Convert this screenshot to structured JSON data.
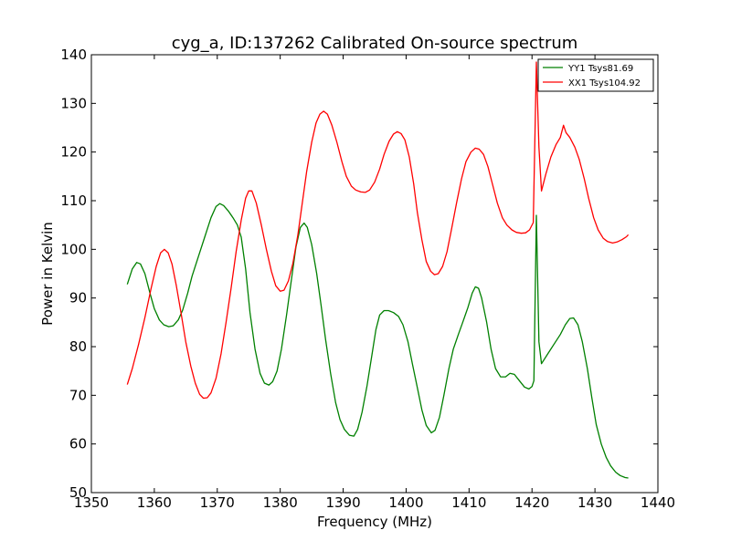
{
  "chart_data": {
    "type": "line",
    "title": "cyg_a, ID:137262 Calibrated On-source spectrum",
    "xlabel": "Frequency (MHz)",
    "ylabel": "Power in Kelvin",
    "xlim": [
      1350,
      1440
    ],
    "ylim": [
      50,
      140
    ],
    "xticks": [
      1350,
      1360,
      1370,
      1380,
      1390,
      1400,
      1410,
      1420,
      1430,
      1440
    ],
    "yticks": [
      50,
      60,
      70,
      80,
      90,
      100,
      110,
      120,
      130,
      140
    ],
    "grid": false,
    "legend_position": "top-right",
    "series": [
      {
        "name": "YY1 Tsys81.69",
        "color": "#008000",
        "points": [
          [
            1355.7,
            92.8
          ],
          [
            1356.5,
            96.0
          ],
          [
            1357.2,
            97.3
          ],
          [
            1357.8,
            97.0
          ],
          [
            1358.5,
            95.0
          ],
          [
            1359.3,
            91.0
          ],
          [
            1360.0,
            87.8
          ],
          [
            1360.8,
            85.5
          ],
          [
            1361.5,
            84.5
          ],
          [
            1362.3,
            84.1
          ],
          [
            1363.0,
            84.3
          ],
          [
            1363.8,
            85.5
          ],
          [
            1364.5,
            87.5
          ],
          [
            1365.3,
            91.0
          ],
          [
            1366.0,
            94.5
          ],
          [
            1367.0,
            98.5
          ],
          [
            1368.0,
            102.5
          ],
          [
            1369.0,
            106.5
          ],
          [
            1369.8,
            108.8
          ],
          [
            1370.4,
            109.4
          ],
          [
            1371.0,
            109.0
          ],
          [
            1371.8,
            107.8
          ],
          [
            1372.5,
            106.5
          ],
          [
            1373.2,
            105.0
          ],
          [
            1373.8,
            102.5
          ],
          [
            1374.5,
            96.0
          ],
          [
            1375.2,
            87.0
          ],
          [
            1376.0,
            79.5
          ],
          [
            1376.8,
            74.5
          ],
          [
            1377.5,
            72.5
          ],
          [
            1378.2,
            72.1
          ],
          [
            1378.8,
            72.8
          ],
          [
            1379.5,
            75.0
          ],
          [
            1380.2,
            79.5
          ],
          [
            1381.0,
            86.5
          ],
          [
            1381.8,
            94.0
          ],
          [
            1382.5,
            100.5
          ],
          [
            1383.2,
            104.5
          ],
          [
            1383.8,
            105.4
          ],
          [
            1384.3,
            104.5
          ],
          [
            1385.0,
            101.0
          ],
          [
            1385.8,
            95.0
          ],
          [
            1386.5,
            88.5
          ],
          [
            1387.2,
            81.5
          ],
          [
            1388.0,
            74.5
          ],
          [
            1388.8,
            68.5
          ],
          [
            1389.5,
            65.0
          ],
          [
            1390.2,
            63.0
          ],
          [
            1391.0,
            61.8
          ],
          [
            1391.7,
            61.6
          ],
          [
            1392.3,
            63.0
          ],
          [
            1393.0,
            66.5
          ],
          [
            1393.8,
            72.0
          ],
          [
            1394.6,
            78.5
          ],
          [
            1395.2,
            83.5
          ],
          [
            1395.8,
            86.5
          ],
          [
            1396.5,
            87.4
          ],
          [
            1397.2,
            87.4
          ],
          [
            1398.0,
            87.0
          ],
          [
            1398.8,
            86.2
          ],
          [
            1399.5,
            84.5
          ],
          [
            1400.3,
            81.0
          ],
          [
            1401.0,
            76.5
          ],
          [
            1401.8,
            71.5
          ],
          [
            1402.5,
            67.0
          ],
          [
            1403.2,
            63.8
          ],
          [
            1404.0,
            62.3
          ],
          [
            1404.6,
            62.8
          ],
          [
            1405.3,
            65.5
          ],
          [
            1406.0,
            70.0
          ],
          [
            1406.8,
            75.5
          ],
          [
            1407.5,
            79.5
          ],
          [
            1408.3,
            82.5
          ],
          [
            1409.0,
            85.0
          ],
          [
            1409.8,
            88.0
          ],
          [
            1410.5,
            91.0
          ],
          [
            1411.0,
            92.3
          ],
          [
            1411.5,
            92.0
          ],
          [
            1412.0,
            90.0
          ],
          [
            1412.8,
            85.0
          ],
          [
            1413.5,
            79.5
          ],
          [
            1414.2,
            75.5
          ],
          [
            1415.0,
            73.8
          ],
          [
            1415.8,
            73.8
          ],
          [
            1416.5,
            74.5
          ],
          [
            1417.2,
            74.3
          ],
          [
            1418.0,
            73.0
          ],
          [
            1418.8,
            71.7
          ],
          [
            1419.5,
            71.3
          ],
          [
            1420.0,
            71.8
          ],
          [
            1420.3,
            73.0
          ],
          [
            1420.7,
            107.0
          ],
          [
            1421.1,
            81.0
          ],
          [
            1421.5,
            76.5
          ],
          [
            1422.5,
            78.5
          ],
          [
            1423.5,
            80.5
          ],
          [
            1424.5,
            82.5
          ],
          [
            1425.3,
            84.5
          ],
          [
            1426.0,
            85.8
          ],
          [
            1426.6,
            85.9
          ],
          [
            1427.3,
            84.5
          ],
          [
            1428.0,
            81.0
          ],
          [
            1428.8,
            75.5
          ],
          [
            1429.5,
            69.5
          ],
          [
            1430.2,
            64.0
          ],
          [
            1431.0,
            60.0
          ],
          [
            1431.8,
            57.2
          ],
          [
            1432.5,
            55.5
          ],
          [
            1433.3,
            54.2
          ],
          [
            1434.0,
            53.5
          ],
          [
            1434.8,
            53.1
          ],
          [
            1435.3,
            53.0
          ]
        ]
      },
      {
        "name": "XX1 Tsys104.92",
        "color": "#ff0000",
        "points": [
          [
            1355.7,
            72.2
          ],
          [
            1356.5,
            75.5
          ],
          [
            1357.5,
            80.5
          ],
          [
            1358.5,
            86.0
          ],
          [
            1359.5,
            92.0
          ],
          [
            1360.3,
            96.5
          ],
          [
            1361.0,
            99.3
          ],
          [
            1361.6,
            100.0
          ],
          [
            1362.2,
            99.3
          ],
          [
            1362.8,
            97.0
          ],
          [
            1363.5,
            92.5
          ],
          [
            1364.3,
            86.5
          ],
          [
            1365.0,
            81.0
          ],
          [
            1365.8,
            76.0
          ],
          [
            1366.5,
            72.5
          ],
          [
            1367.2,
            70.2
          ],
          [
            1367.8,
            69.4
          ],
          [
            1368.4,
            69.5
          ],
          [
            1369.0,
            70.5
          ],
          [
            1369.8,
            73.5
          ],
          [
            1370.6,
            78.5
          ],
          [
            1371.4,
            85.0
          ],
          [
            1372.2,
            92.0
          ],
          [
            1373.0,
            99.5
          ],
          [
            1373.8,
            106.0
          ],
          [
            1374.5,
            110.5
          ],
          [
            1375.0,
            112.0
          ],
          [
            1375.5,
            112.0
          ],
          [
            1376.2,
            109.5
          ],
          [
            1377.0,
            105.0
          ],
          [
            1377.8,
            100.0
          ],
          [
            1378.6,
            95.5
          ],
          [
            1379.3,
            92.5
          ],
          [
            1380.0,
            91.4
          ],
          [
            1380.6,
            91.6
          ],
          [
            1381.3,
            93.5
          ],
          [
            1382.0,
            97.0
          ],
          [
            1382.8,
            103.0
          ],
          [
            1383.5,
            109.5
          ],
          [
            1384.2,
            116.0
          ],
          [
            1385.0,
            122.0
          ],
          [
            1385.7,
            126.0
          ],
          [
            1386.3,
            127.8
          ],
          [
            1386.9,
            128.4
          ],
          [
            1387.5,
            127.8
          ],
          [
            1388.2,
            125.5
          ],
          [
            1389.0,
            122.0
          ],
          [
            1389.8,
            118.0
          ],
          [
            1390.5,
            115.0
          ],
          [
            1391.3,
            113.0
          ],
          [
            1392.0,
            112.2
          ],
          [
            1392.8,
            111.8
          ],
          [
            1393.5,
            111.7
          ],
          [
            1394.2,
            112.2
          ],
          [
            1395.0,
            113.8
          ],
          [
            1395.8,
            116.5
          ],
          [
            1396.5,
            119.5
          ],
          [
            1397.3,
            122.2
          ],
          [
            1398.0,
            123.7
          ],
          [
            1398.6,
            124.2
          ],
          [
            1399.2,
            123.8
          ],
          [
            1399.8,
            122.5
          ],
          [
            1400.5,
            119.0
          ],
          [
            1401.2,
            113.5
          ],
          [
            1401.8,
            107.5
          ],
          [
            1402.5,
            102.0
          ],
          [
            1403.2,
            97.5
          ],
          [
            1403.9,
            95.5
          ],
          [
            1404.5,
            94.8
          ],
          [
            1405.1,
            95.0
          ],
          [
            1405.8,
            96.5
          ],
          [
            1406.5,
            99.5
          ],
          [
            1407.2,
            104.0
          ],
          [
            1408.0,
            109.5
          ],
          [
            1408.8,
            114.5
          ],
          [
            1409.5,
            118.0
          ],
          [
            1410.3,
            120.0
          ],
          [
            1411.0,
            120.8
          ],
          [
            1411.6,
            120.6
          ],
          [
            1412.3,
            119.5
          ],
          [
            1413.0,
            117.0
          ],
          [
            1413.8,
            113.0
          ],
          [
            1414.5,
            109.5
          ],
          [
            1415.3,
            106.5
          ],
          [
            1416.0,
            105.0
          ],
          [
            1416.8,
            104.0
          ],
          [
            1417.5,
            103.5
          ],
          [
            1418.3,
            103.3
          ],
          [
            1419.0,
            103.4
          ],
          [
            1419.6,
            104.0
          ],
          [
            1420.2,
            105.5
          ],
          [
            1420.7,
            138.5
          ],
          [
            1421.1,
            121.0
          ],
          [
            1421.5,
            112.0
          ],
          [
            1422.2,
            115.5
          ],
          [
            1423.0,
            119.0
          ],
          [
            1423.8,
            121.5
          ],
          [
            1424.5,
            123.0
          ],
          [
            1425.0,
            125.5
          ],
          [
            1425.4,
            124.0
          ],
          [
            1426.0,
            123.0
          ],
          [
            1426.8,
            121.0
          ],
          [
            1427.5,
            118.5
          ],
          [
            1428.3,
            114.5
          ],
          [
            1429.0,
            110.5
          ],
          [
            1429.8,
            106.5
          ],
          [
            1430.5,
            104.0
          ],
          [
            1431.3,
            102.3
          ],
          [
            1432.0,
            101.6
          ],
          [
            1432.8,
            101.3
          ],
          [
            1433.5,
            101.5
          ],
          [
            1434.3,
            102.0
          ],
          [
            1435.0,
            102.6
          ],
          [
            1435.3,
            103.0
          ]
        ]
      }
    ]
  }
}
